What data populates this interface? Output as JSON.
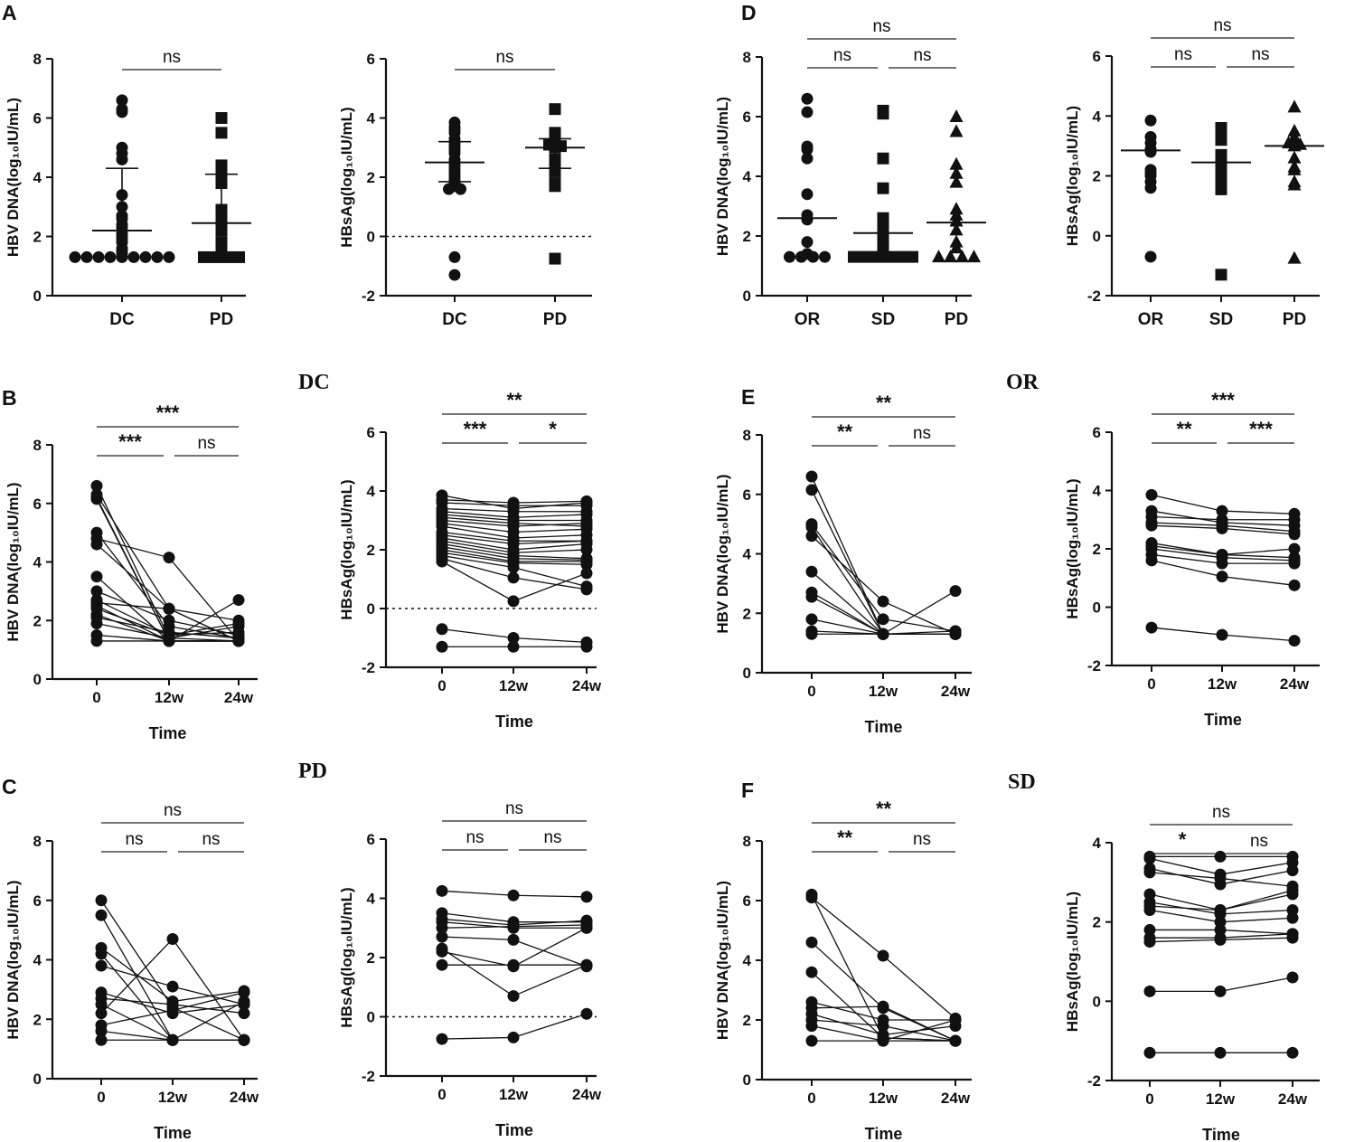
{
  "chart_data": [
    {
      "id": "A1",
      "panel": "A",
      "type": "scatter",
      "ylabel": "HBV DNA(log₁₀IU/mL)",
      "ylim": [
        0,
        8
      ],
      "yticks": [
        0,
        2,
        4,
        6,
        8
      ],
      "categories": [
        "DC",
        "PD"
      ],
      "groups": [
        {
          "name": "DC",
          "marker": "circle",
          "values": [
            6.6,
            6.3,
            6.2,
            5.0,
            4.8,
            4.6,
            3.4,
            3.0,
            2.7,
            2.6,
            2.4,
            2.3,
            2.1,
            2.0,
            1.9,
            1.8,
            1.6,
            1.5,
            1.4,
            1.3,
            1.3,
            1.3,
            1.3,
            1.3,
            1.3,
            1.3,
            1.3,
            1.3
          ],
          "median": 2.2,
          "q1": 1.3,
          "q3": 4.3
        },
        {
          "name": "PD",
          "marker": "square",
          "values": [
            6.0,
            5.5,
            4.4,
            4.1,
            3.8,
            2.9,
            2.7,
            2.5,
            2.2,
            1.8,
            1.6,
            1.3,
            1.3,
            1.3,
            1.3
          ],
          "median": 2.45,
          "q1": 1.3,
          "q3": 4.1
        }
      ],
      "comparisons": [
        {
          "from": 0,
          "to": 1,
          "label": "ns"
        }
      ]
    },
    {
      "id": "A2",
      "panel": "",
      "type": "scatter",
      "ylabel": "HBsAg(log₁₀IU/mL)",
      "ylim": [
        -2,
        6
      ],
      "yticks": [
        -2,
        0,
        2,
        4,
        6
      ],
      "zero_line": true,
      "categories": [
        "DC",
        "PD"
      ],
      "groups": [
        {
          "name": "DC",
          "marker": "circle",
          "values": [
            3.85,
            3.7,
            3.6,
            3.5,
            3.3,
            3.2,
            3.1,
            3.0,
            2.9,
            2.8,
            2.6,
            2.5,
            2.4,
            2.3,
            2.2,
            2.1,
            2.0,
            1.9,
            1.8,
            1.7,
            1.6,
            1.6,
            -0.7,
            -1.3
          ],
          "median": 2.5,
          "q1": 1.85,
          "q3": 3.2
        },
        {
          "name": "PD",
          "marker": "square",
          "values": [
            4.3,
            3.5,
            3.3,
            3.2,
            3.1,
            3.05,
            3.0,
            2.6,
            2.3,
            2.2,
            1.8,
            1.7,
            -0.75
          ],
          "median": 3.0,
          "q1": 2.3,
          "q3": 3.3
        }
      ],
      "comparisons": [
        {
          "from": 0,
          "to": 1,
          "label": "ns"
        }
      ]
    },
    {
      "id": "D1",
      "panel": "D",
      "type": "scatter",
      "ylabel": "HBV DNA(log₁₀IU/mL)",
      "ylim": [
        0,
        8
      ],
      "yticks": [
        0,
        2,
        4,
        6,
        8
      ],
      "categories": [
        "OR",
        "SD",
        "PD"
      ],
      "groups": [
        {
          "name": "OR",
          "marker": "circle",
          "values": [
            6.6,
            6.15,
            5.0,
            4.9,
            4.6,
            3.4,
            2.7,
            2.55,
            1.8,
            1.4,
            1.3,
            1.3,
            1.3,
            1.3
          ],
          "median": 2.6
        },
        {
          "name": "SD",
          "marker": "square",
          "values": [
            6.2,
            6.1,
            4.6,
            3.6,
            2.6,
            2.4,
            2.2,
            2.0,
            1.9,
            1.8,
            1.5,
            1.4,
            1.3,
            1.3,
            1.3,
            1.3,
            1.3,
            1.3
          ],
          "median": 2.1
        },
        {
          "name": "PD",
          "marker": "triangle",
          "values": [
            6.0,
            5.5,
            4.4,
            4.1,
            3.8,
            2.9,
            2.7,
            2.5,
            2.2,
            1.8,
            1.6,
            1.3,
            1.3,
            1.3,
            1.3
          ],
          "median": 2.45
        }
      ],
      "comparisons": [
        {
          "from": 0,
          "to": 2,
          "label": "ns"
        },
        {
          "from": 0,
          "to": 1,
          "label": "ns"
        },
        {
          "from": 1,
          "to": 2,
          "label": "ns"
        }
      ]
    },
    {
      "id": "D2",
      "panel": "",
      "type": "scatter",
      "ylabel": "HBsAg(log₁₀IU/mL)",
      "ylim": [
        -2,
        6
      ],
      "yticks": [
        -2,
        0,
        2,
        4,
        6
      ],
      "categories": [
        "OR",
        "SD",
        "PD"
      ],
      "groups": [
        {
          "name": "OR",
          "marker": "circle",
          "values": [
            3.85,
            3.3,
            3.1,
            2.9,
            2.8,
            2.2,
            2.1,
            2.0,
            1.8,
            1.6,
            -0.7
          ],
          "median": 2.85
        },
        {
          "name": "SD",
          "marker": "square",
          "values": [
            3.6,
            3.5,
            3.35,
            3.2,
            2.7,
            2.6,
            2.45,
            2.3,
            2.1,
            1.8,
            1.7,
            1.55,
            -1.3
          ],
          "median": 2.45
        },
        {
          "name": "PD",
          "marker": "triangle",
          "values": [
            4.3,
            3.5,
            3.3,
            3.2,
            3.1,
            3.05,
            3.0,
            2.6,
            2.3,
            2.2,
            1.8,
            1.7,
            -0.75
          ],
          "median": 3.0
        }
      ],
      "comparisons": [
        {
          "from": 0,
          "to": 2,
          "label": "ns"
        },
        {
          "from": 0,
          "to": 1,
          "label": "ns"
        },
        {
          "from": 1,
          "to": 2,
          "label": "ns"
        }
      ]
    },
    {
      "id": "B1",
      "panel": "B",
      "type": "line",
      "xlabel": "Time",
      "ylabel": "HBV  DNA(log₁₀IU/mL)",
      "ylim": [
        0,
        8
      ],
      "yticks": [
        0,
        2,
        4,
        6,
        8
      ],
      "x": [
        "0",
        "12w",
        "24w"
      ],
      "series": [
        [
          6.6,
          1.4,
          1.3
        ],
        [
          6.3,
          2.4,
          1.3
        ],
        [
          6.2,
          1.3,
          1.3
        ],
        [
          6.15,
          1.3,
          1.3
        ],
        [
          5.0,
          1.8,
          1.4
        ],
        [
          4.8,
          4.15,
          1.3
        ],
        [
          4.6,
          2.4,
          1.3
        ],
        [
          3.5,
          1.3,
          1.3
        ],
        [
          3.0,
          2.0,
          1.5
        ],
        [
          2.7,
          1.5,
          1.9
        ],
        [
          2.6,
          2.4,
          2.0
        ],
        [
          2.5,
          1.3,
          2.7
        ],
        [
          2.4,
          1.5,
          1.6
        ],
        [
          2.2,
          1.3,
          1.3
        ],
        [
          2.1,
          1.6,
          1.4
        ],
        [
          1.9,
          1.4,
          1.8
        ],
        [
          1.5,
          1.3,
          1.3
        ],
        [
          1.3,
          1.3,
          1.3
        ]
      ],
      "comparisons": [
        {
          "from": 0,
          "to": 2,
          "label": "***"
        },
        {
          "from": 0,
          "to": 1,
          "label": "***"
        },
        {
          "from": 1,
          "to": 2,
          "label": "ns"
        }
      ]
    },
    {
      "id": "B2",
      "panel": "",
      "type": "line",
      "xlabel": "Time",
      "ylabel": "HBsAg(log₁₀IU/mL)",
      "ylim": [
        -2,
        6
      ],
      "yticks": [
        -2,
        0,
        2,
        4,
        6
      ],
      "zero_line": true,
      "x": [
        "0",
        "12w",
        "24w"
      ],
      "series": [
        [
          3.85,
          3.4,
          3.6
        ],
        [
          3.7,
          3.6,
          3.65
        ],
        [
          3.6,
          3.5,
          3.5
        ],
        [
          3.4,
          3.3,
          3.3
        ],
        [
          3.3,
          3.1,
          3.2
        ],
        [
          3.2,
          3.0,
          3.0
        ],
        [
          3.1,
          2.9,
          2.8
        ],
        [
          3.0,
          2.8,
          2.9
        ],
        [
          2.9,
          2.6,
          2.7
        ],
        [
          2.8,
          2.4,
          2.5
        ],
        [
          2.6,
          2.3,
          2.3
        ],
        [
          2.5,
          2.2,
          2.3
        ],
        [
          2.4,
          2.0,
          2.2
        ],
        [
          2.3,
          1.9,
          2.0
        ],
        [
          2.2,
          1.8,
          1.7
        ],
        [
          2.1,
          1.7,
          1.65
        ],
        [
          2.0,
          1.6,
          1.6
        ],
        [
          1.9,
          1.55,
          1.5
        ],
        [
          1.8,
          1.4,
          0.75
        ],
        [
          1.7,
          1.05,
          0.65
        ],
        [
          1.6,
          0.25,
          1.2
        ],
        [
          -0.7,
          -1.0,
          -1.15
        ],
        [
          -1.3,
          -1.3,
          -1.3
        ]
      ],
      "comparisons": [
        {
          "from": 0,
          "to": 2,
          "label": "**"
        },
        {
          "from": 0,
          "to": 1,
          "label": "***"
        },
        {
          "from": 1,
          "to": 2,
          "label": "*"
        }
      ]
    },
    {
      "id": "E1",
      "panel": "E",
      "type": "line",
      "xlabel": "Time",
      "ylabel": "HBV DNA(log₁₀IU/mL)",
      "ylim": [
        0,
        8
      ],
      "yticks": [
        0,
        2,
        4,
        6,
        8
      ],
      "x": [
        "0",
        "12w",
        "24w"
      ],
      "series": [
        [
          6.6,
          1.3,
          1.3
        ],
        [
          6.15,
          1.3,
          1.3
        ],
        [
          5.0,
          1.8,
          1.4
        ],
        [
          4.9,
          1.3,
          1.3
        ],
        [
          4.6,
          2.4,
          1.3
        ],
        [
          3.4,
          1.3,
          1.3
        ],
        [
          2.7,
          1.3,
          2.75
        ],
        [
          2.55,
          1.3,
          1.4
        ],
        [
          1.8,
          1.3,
          1.3
        ],
        [
          1.4,
          1.3,
          1.3
        ],
        [
          1.3,
          1.3,
          1.3
        ]
      ],
      "comparisons": [
        {
          "from": 0,
          "to": 2,
          "label": "**"
        },
        {
          "from": 0,
          "to": 1,
          "label": "**"
        },
        {
          "from": 1,
          "to": 2,
          "label": "ns"
        }
      ]
    },
    {
      "id": "E2",
      "panel": "",
      "type": "line",
      "xlabel": "Time",
      "ylabel": "HBsAg(log₁₀IU/mL)",
      "ylim": [
        -2,
        6
      ],
      "yticks": [
        -2,
        0,
        2,
        4,
        6
      ],
      "x": [
        "0",
        "12w",
        "24w"
      ],
      "series": [
        [
          3.85,
          3.3,
          3.2
        ],
        [
          3.3,
          2.9,
          2.8
        ],
        [
          3.1,
          3.0,
          3.0
        ],
        [
          2.9,
          2.8,
          2.6
        ],
        [
          2.8,
          2.7,
          2.5
        ],
        [
          2.2,
          1.8,
          1.7
        ],
        [
          2.1,
          1.8,
          2.0
        ],
        [
          2.0,
          1.7,
          1.6
        ],
        [
          1.8,
          1.5,
          1.5
        ],
        [
          1.6,
          1.05,
          0.75
        ],
        [
          -0.7,
          -0.95,
          -1.15
        ]
      ],
      "comparisons": [
        {
          "from": 0,
          "to": 2,
          "label": "***"
        },
        {
          "from": 0,
          "to": 1,
          "label": "**"
        },
        {
          "from": 1,
          "to": 2,
          "label": "***"
        }
      ]
    },
    {
      "id": "C1",
      "panel": "C",
      "type": "line",
      "xlabel": "Time",
      "ylabel": "HBV DNA(log₁₀IU/mL)",
      "ylim": [
        0,
        8
      ],
      "yticks": [
        0,
        2,
        4,
        6,
        8
      ],
      "x": [
        "0",
        "12w",
        "24w"
      ],
      "series": [
        [
          6.0,
          2.4,
          1.3
        ],
        [
          5.5,
          1.3,
          2.6
        ],
        [
          4.4,
          2.6,
          2.95
        ],
        [
          4.2,
          1.3,
          1.3
        ],
        [
          3.8,
          3.1,
          2.5
        ],
        [
          2.9,
          2.2,
          2.5
        ],
        [
          2.7,
          2.5,
          2.2
        ],
        [
          2.5,
          1.3,
          1.3
        ],
        [
          2.2,
          4.7,
          1.3
        ],
        [
          1.8,
          2.3,
          2.9
        ],
        [
          1.6,
          1.3,
          1.3
        ],
        [
          1.3,
          1.3,
          1.3
        ]
      ],
      "comparisons": [
        {
          "from": 0,
          "to": 2,
          "label": "ns"
        },
        {
          "from": 0,
          "to": 1,
          "label": "ns"
        },
        {
          "from": 1,
          "to": 2,
          "label": "ns"
        }
      ]
    },
    {
      "id": "C2",
      "panel": "",
      "type": "line",
      "xlabel": "Time",
      "ylabel": "HBsAg(log₁₀IU/mL)",
      "ylim": [
        -2,
        6
      ],
      "yticks": [
        -2,
        0,
        2,
        4,
        6
      ],
      "zero_line": true,
      "x": [
        "0",
        "12w",
        "24w"
      ],
      "series": [
        [
          4.25,
          4.1,
          4.05
        ],
        [
          3.5,
          3.2,
          3.2
        ],
        [
          3.3,
          3.1,
          3.25
        ],
        [
          3.2,
          3.0,
          3.0
        ],
        [
          3.0,
          3.05,
          3.1
        ],
        [
          2.7,
          2.6,
          1.7
        ],
        [
          2.3,
          0.7,
          1.75
        ],
        [
          1.75,
          1.75,
          1.75
        ],
        [
          2.2,
          1.7,
          3.0
        ],
        [
          -0.75,
          -0.7,
          0.1
        ]
      ],
      "comparisons": [
        {
          "from": 0,
          "to": 2,
          "label": "ns"
        },
        {
          "from": 0,
          "to": 1,
          "label": "ns"
        },
        {
          "from": 1,
          "to": 2,
          "label": "ns"
        }
      ]
    },
    {
      "id": "F1",
      "panel": "F",
      "type": "line",
      "xlabel": "Time",
      "ylabel": "HBV DNA(log₁₀IU/mL)",
      "ylim": [
        0,
        8
      ],
      "yticks": [
        0,
        2,
        4,
        6,
        8
      ],
      "x": [
        "0",
        "12w",
        "24w"
      ],
      "series": [
        [
          6.2,
          1.4,
          1.3
        ],
        [
          6.1,
          4.15,
          2.05
        ],
        [
          4.6,
          2.4,
          1.3
        ],
        [
          3.6,
          1.4,
          1.3
        ],
        [
          2.6,
          2.0,
          2.0
        ],
        [
          2.4,
          2.45,
          1.3
        ],
        [
          2.2,
          1.5,
          1.8
        ],
        [
          2.0,
          1.8,
          1.3
        ],
        [
          1.8,
          1.3,
          2.0
        ],
        [
          1.3,
          1.3,
          1.3
        ]
      ],
      "comparisons": [
        {
          "from": 0,
          "to": 2,
          "label": "**"
        },
        {
          "from": 0,
          "to": 1,
          "label": "**"
        },
        {
          "from": 1,
          "to": 2,
          "label": "ns"
        }
      ]
    },
    {
      "id": "F2",
      "panel": "",
      "type": "line",
      "xlabel": "Time",
      "ylabel": "HBsAg(log₁₀IU/mL)",
      "ylim": [
        -2,
        4
      ],
      "yticks": [
        -2,
        0,
        2,
        4
      ],
      "x": [
        "0",
        "12w",
        "24w"
      ],
      "series": [
        [
          3.65,
          3.65,
          3.65
        ],
        [
          3.6,
          3.2,
          3.5
        ],
        [
          3.35,
          2.95,
          3.3
        ],
        [
          3.25,
          3.1,
          2.9
        ],
        [
          2.7,
          2.3,
          2.8
        ],
        [
          2.5,
          2.2,
          2.3
        ],
        [
          2.4,
          2.3,
          2.7
        ],
        [
          2.3,
          2.0,
          2.1
        ],
        [
          1.8,
          1.8,
          1.7
        ],
        [
          1.6,
          1.6,
          1.7
        ],
        [
          1.5,
          1.55,
          1.6
        ],
        [
          0.25,
          0.25,
          0.6
        ],
        [
          -1.3,
          -1.3,
          -1.3
        ]
      ],
      "comparisons": [
        {
          "from": 0,
          "to": 2,
          "label": "ns"
        },
        {
          "from": 0,
          "to": 1,
          "label": "*"
        },
        {
          "from": 1,
          "to": 2,
          "label": "ns"
        }
      ]
    }
  ],
  "group_titles": {
    "B": "DC",
    "C": "PD",
    "E": "OR",
    "F": "SD"
  }
}
